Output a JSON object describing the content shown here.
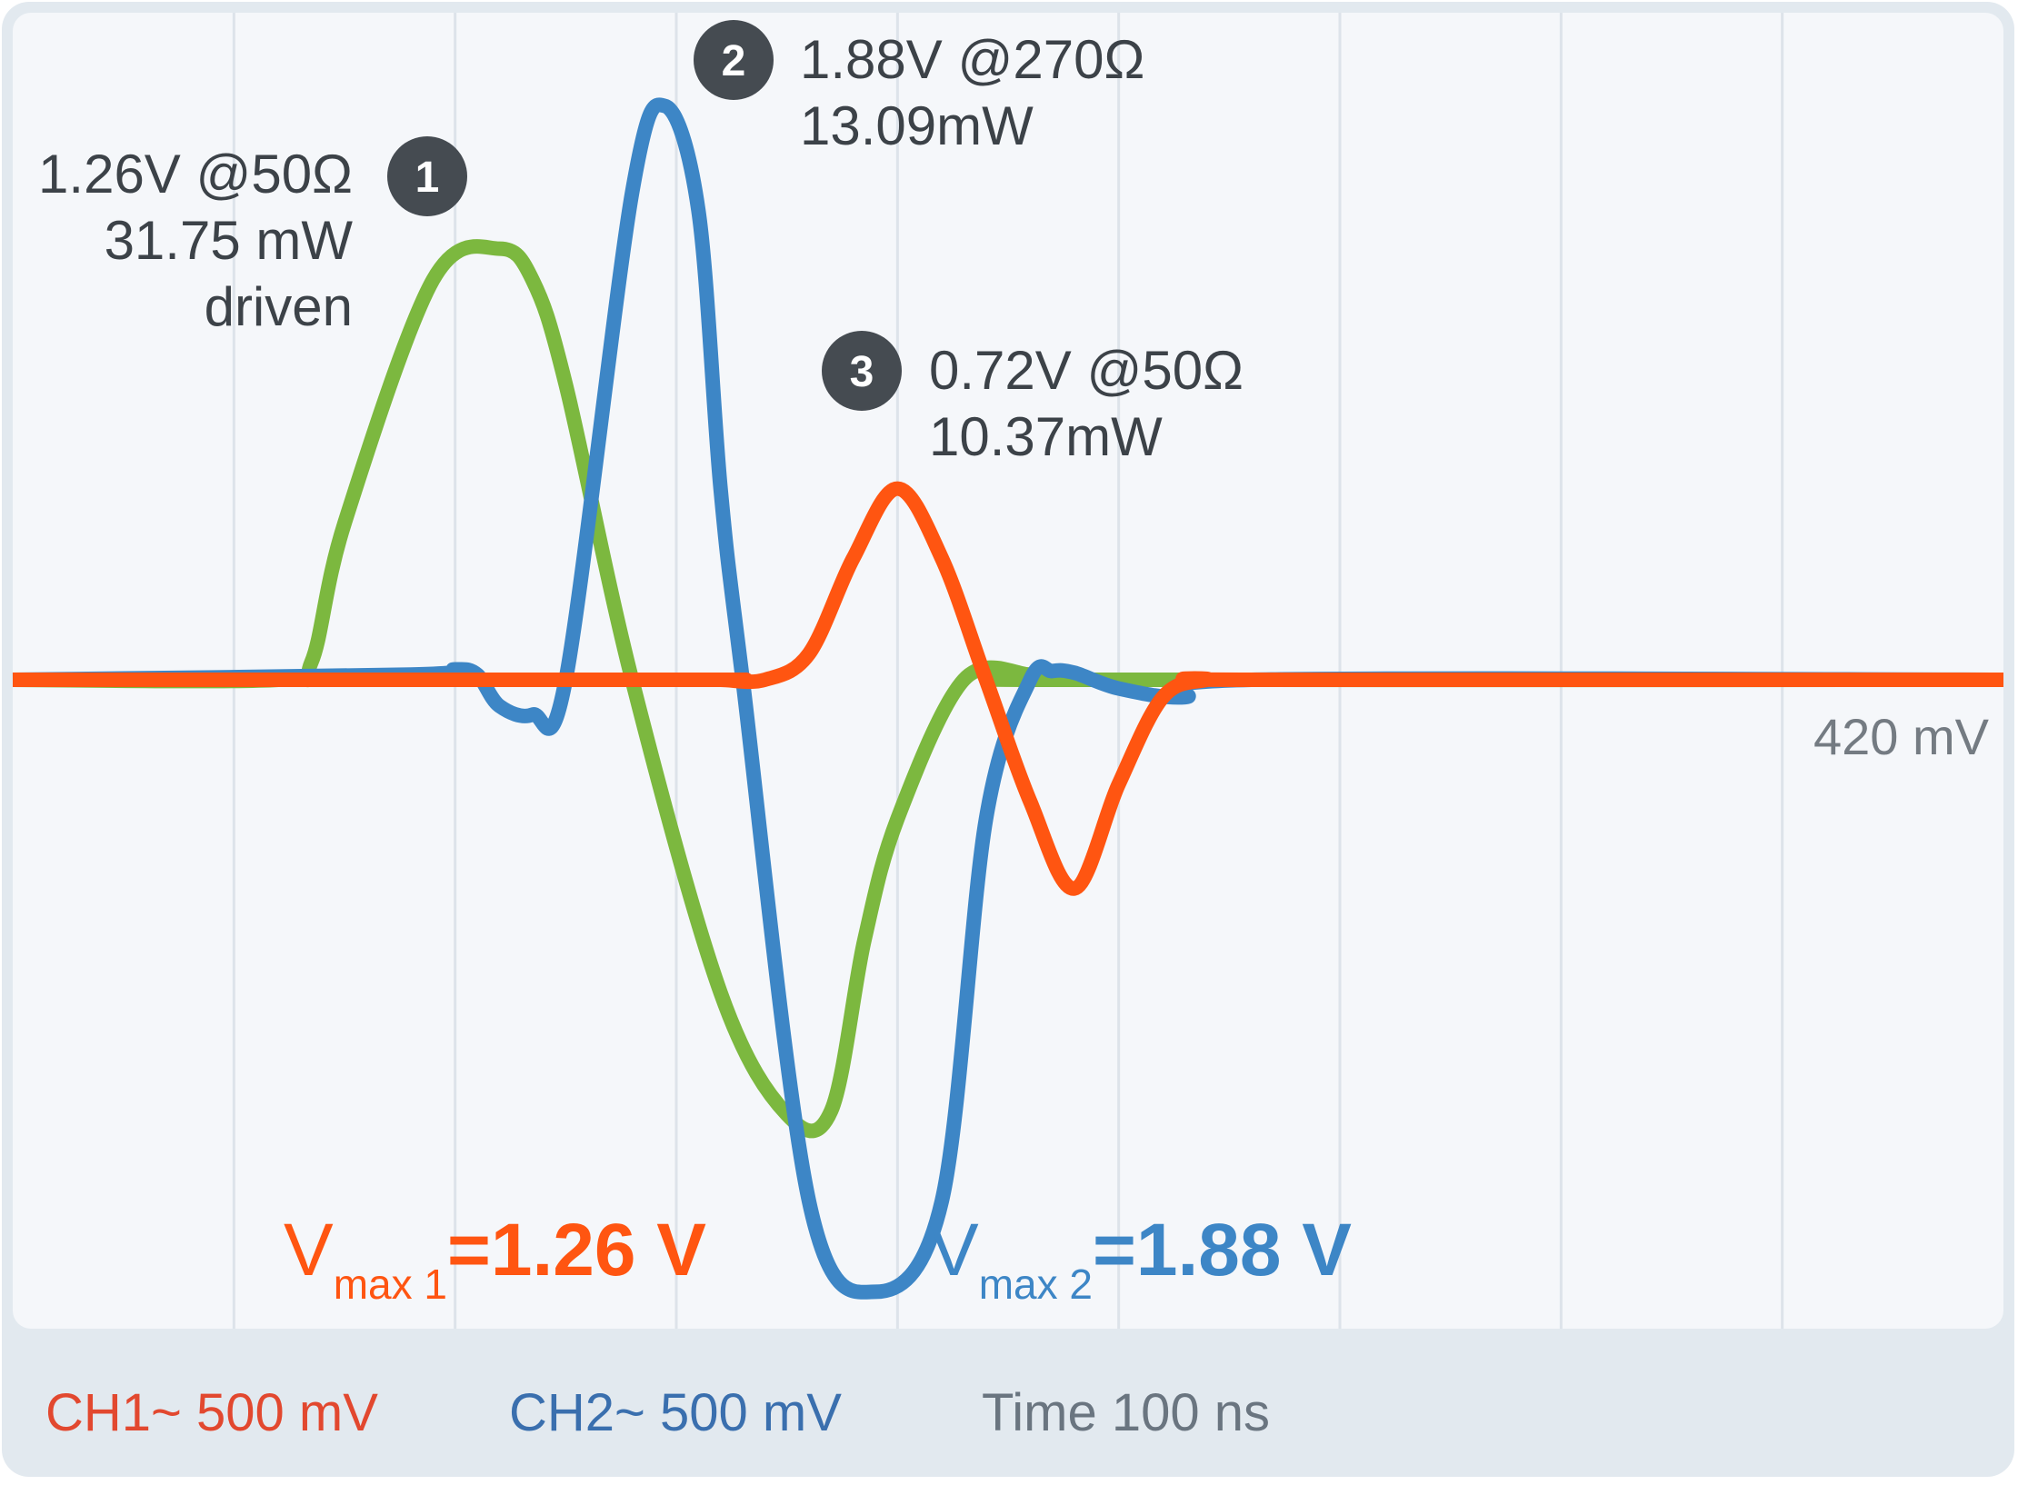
{
  "chart_data": {
    "type": "line",
    "title": "",
    "grid": true,
    "time_axis": {
      "range_ns": [
        0,
        900
      ]
    },
    "voltage_axis": {
      "range_mV": [
        -2800,
        2800
      ]
    },
    "series": [
      {
        "color": "#7cb83f",
        "x": [
          0,
          120,
          135,
          150,
          190,
          220,
          235,
          250,
          280,
          320,
          350,
          370,
          385,
          400,
          430,
          460,
          470,
          475,
          900
        ],
        "y": [
          0,
          0,
          100,
          900,
          2300,
          2480,
          2300,
          1700,
          0,
          -1800,
          -2500,
          -2480,
          -1500,
          -800,
          0,
          30,
          10,
          0,
          0
        ]
      },
      {
        "color": "#3d86c6",
        "x": [
          0,
          180,
          200,
          210,
          220,
          235,
          250,
          280,
          295,
          310,
          320,
          330,
          360,
          390,
          420,
          440,
          460,
          470,
          480,
          500,
          530,
          560,
          900
        ],
        "y": [
          0,
          30,
          60,
          30,
          -150,
          -200,
          0,
          2800,
          3300,
          2700,
          1100,
          0,
          -3000,
          -3520,
          -3000,
          -800,
          0,
          50,
          40,
          -50,
          -100,
          0,
          0
        ]
      },
      {
        "color": "#ff5511",
        "x": [
          0,
          305,
          320,
          340,
          360,
          380,
          400,
          420,
          440,
          460,
          480,
          500,
          520,
          540,
          560,
          900
        ],
        "y": [
          0,
          0,
          0,
          0,
          150,
          700,
          1100,
          700,
          0,
          -700,
          -1200,
          -600,
          -100,
          0,
          0,
          0
        ]
      }
    ],
    "annotations": [
      {
        "number": "1",
        "lines": [
          "1.26V @50Ω",
          "31.75 mW",
          "driven"
        ]
      },
      {
        "number": "2",
        "lines": [
          "1.88V @270Ω",
          "13.09mW"
        ]
      },
      {
        "number": "3",
        "lines": [
          "0.72V @50Ω",
          "10.37mW"
        ]
      }
    ],
    "level_label": "420 mV",
    "vmax": [
      {
        "v": "V",
        "sub": "max 1",
        "value": "=1.26 V",
        "color": "#ff5511"
      },
      {
        "v": "V",
        "sub": "max 2",
        "value": "=1.88 V",
        "color": "#3d86c6"
      }
    ],
    "footer": {
      "ch1": "CH1~ 500 mV",
      "ch2": "CH2~ 500 mV",
      "time": "Time 100 ns"
    }
  },
  "colors": {
    "frame": "#e2e9ef",
    "screen": "#f5f7fa",
    "grid": "#dde3ea",
    "text": "#3c4248",
    "badge": "#454b51",
    "ch1": "#e2482f",
    "ch2": "#3a6fae",
    "time": "#6a7580",
    "level": "#747b82"
  }
}
